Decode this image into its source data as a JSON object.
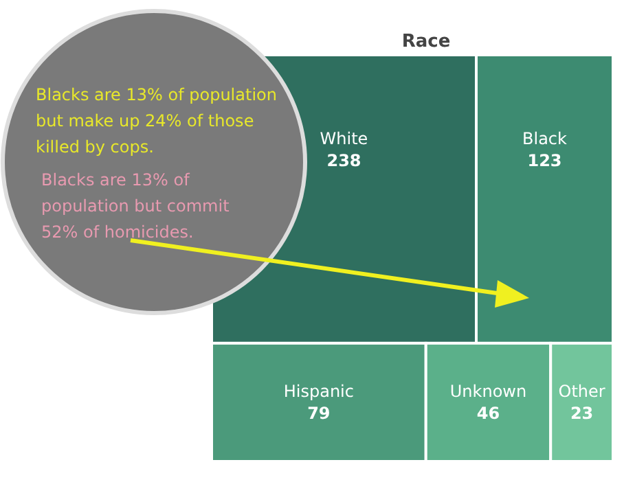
{
  "chart_data": {
    "type": "other",
    "title": "Race",
    "categories": [
      "White",
      "Black",
      "Hispanic",
      "Unknown",
      "Other"
    ],
    "values": [
      238,
      123,
      79,
      46,
      23
    ],
    "colors": [
      "#2f6f5f",
      "#3d8b71",
      "#4b9a7b",
      "#5bb08a",
      "#72c59c"
    ],
    "data_labels": true,
    "annotations": [
      "Blacks are 13% of population but make up 24% of those killed by cops.",
      "Blacks are 13% of population but commit 52% of homicides."
    ]
  }
}
